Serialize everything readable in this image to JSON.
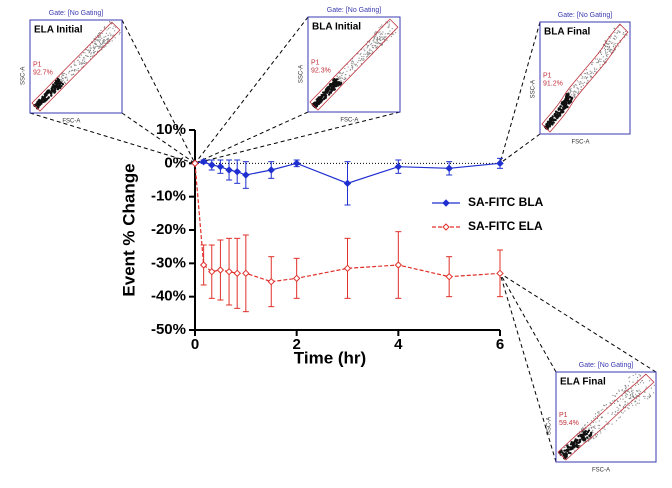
{
  "chart_data": {
    "type": "line",
    "x_label": "Time (hr)",
    "y_label": "Event % Change",
    "x": [
      0,
      0.17,
      0.33,
      0.5,
      0.67,
      0.83,
      1,
      1.5,
      2,
      3,
      4,
      5,
      6
    ],
    "xlim": [
      0,
      6
    ],
    "xticks": [
      0,
      2,
      4,
      6
    ],
    "ylim": [
      -50,
      10
    ],
    "yticks": [
      {
        "value": 10,
        "label": "10%"
      },
      {
        "value": 0,
        "label": "0%"
      },
      {
        "value": -10,
        "label": "-10%"
      },
      {
        "value": -20,
        "label": "-20%"
      },
      {
        "value": -30,
        "label": "-30%"
      },
      {
        "value": -40,
        "label": "-40%"
      },
      {
        "value": -50,
        "label": "-50%"
      }
    ],
    "legend": "right",
    "series": [
      {
        "name": "SA-FITC BLA",
        "color": "#1f2fd0",
        "marker": "filled",
        "dashed": false,
        "values": [
          0,
          0.5,
          -0.5,
          -1,
          -2,
          -2.5,
          -3.5,
          -2,
          0,
          -6,
          -1,
          -1.5,
          0
        ],
        "errors": [
          0,
          0.5,
          1.5,
          2,
          3,
          3.5,
          4,
          2.5,
          1,
          6.5,
          2,
          2,
          1.5
        ]
      },
      {
        "name": "SA-FITC ELA",
        "color": "#e0302a",
        "marker": "open",
        "dashed": true,
        "values": [
          0,
          -30.5,
          -32.5,
          -32,
          -32.5,
          -33,
          -33,
          -35.5,
          -34.5,
          -31.5,
          -30.5,
          -34,
          -33
        ],
        "errors": [
          0,
          6,
          8,
          9,
          10,
          10.5,
          11.5,
          7.5,
          6,
          9,
          10,
          6,
          7
        ]
      }
    ]
  },
  "insets": [
    {
      "title": "ELA Initial",
      "gate": "Gate: [No Gating]",
      "population": "P1",
      "percent": "92.7%",
      "y_axis": "SSC-A",
      "x_axis": "FSC-A"
    },
    {
      "title": "BLA Initial",
      "gate": "Gate: [No Gating]",
      "population": "P1",
      "percent": "92.3%",
      "y_axis": "SSC-A",
      "x_axis": "FSC-A"
    },
    {
      "title": "BLA Final",
      "gate": "Gate: [No Gating]",
      "population": "P1",
      "percent": "91.2%",
      "y_axis": "SSC-A",
      "x_axis": "FSC-A"
    },
    {
      "title": "ELA Final",
      "gate": "Gate: [No Gating]",
      "population": "P1",
      "percent": "59.4%",
      "y_axis": "SSC-A",
      "x_axis": "FSC-A"
    }
  ]
}
